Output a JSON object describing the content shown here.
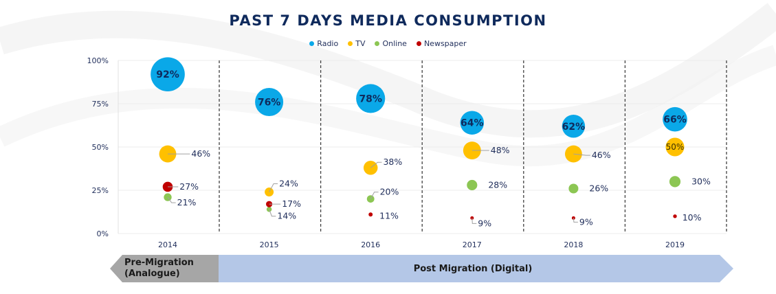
{
  "chart_data": {
    "type": "scatter",
    "subtype": "bubble",
    "title": "PAST 7 DAYS MEDIA CONSUMPTION",
    "xlabel": "",
    "ylabel": "",
    "categories": [
      "2014",
      "2015",
      "2016",
      "2017",
      "2018",
      "2019"
    ],
    "yticks": [
      "0%",
      "25%",
      "50%",
      "75%",
      "100%"
    ],
    "ylim": [
      0,
      100
    ],
    "grid": true,
    "legend_position": "top-center",
    "series": [
      {
        "name": "Radio",
        "color": "#0aa8e8",
        "values": [
          92,
          76,
          78,
          64,
          62,
          66
        ],
        "labels": [
          "92%",
          "76%",
          "78%",
          "64%",
          "62%",
          "66%"
        ]
      },
      {
        "name": "TV",
        "color": "#ffc000",
        "values": [
          46,
          24,
          38,
          48,
          46,
          50
        ],
        "labels": [
          "46%",
          "24%",
          "38%",
          "48%",
          "46%",
          "50%"
        ]
      },
      {
        "name": "Online",
        "color": "#8cc653",
        "values": [
          21,
          14,
          20,
          28,
          26,
          30
        ],
        "labels": [
          "21%",
          "14%",
          "20%",
          "28%",
          "26%",
          "30%"
        ]
      },
      {
        "name": "Newspaper",
        "color": "#c00000",
        "values": [
          27,
          17,
          11,
          9,
          9,
          10
        ],
        "labels": [
          "27%",
          "17%",
          "11%",
          "9%",
          "9%",
          "10%"
        ]
      }
    ],
    "annotations": [
      {
        "text": "Pre-Migration (Analogue)",
        "line1": "Pre-Migration",
        "line2": "(Analogue)",
        "spans": [
          "2014"
        ],
        "color": "#a6a6a6"
      },
      {
        "text": "Post Migration (Digital)",
        "spans": [
          "2015",
          "2016",
          "2017",
          "2018",
          "2019"
        ],
        "color": "#b4c7e7"
      }
    ]
  }
}
